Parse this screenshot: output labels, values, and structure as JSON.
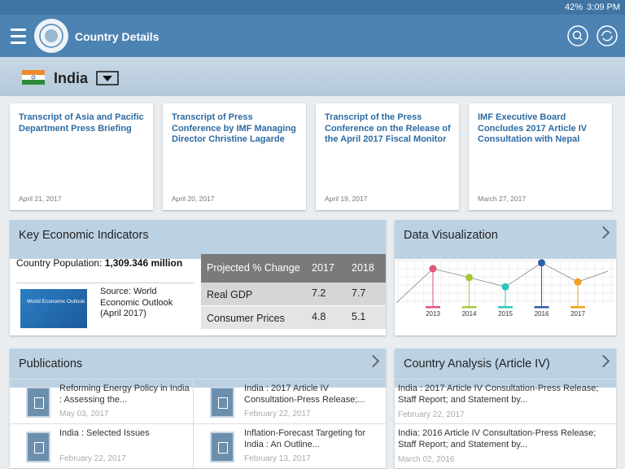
{
  "status_bar": {
    "battery": "42%",
    "time": "3:09 PM"
  },
  "header": {
    "title": "Country Details"
  },
  "country": {
    "name": "India"
  },
  "news": [
    {
      "title": "Transcript of Asia and Pacific Department Press Briefing",
      "date": "April 21, 2017"
    },
    {
      "title": "Transcript of Press Conference by IMF Managing Director Christine Lagarde",
      "date": "April 20, 2017"
    },
    {
      "title": "Transcript of the Press Conference on the Release of the April 2017 Fiscal Monitor",
      "date": "April 19, 2017"
    },
    {
      "title": "IMF Executive Board Concludes 2017 Article IV Consultation with Nepal",
      "date": "March 27, 2017"
    }
  ],
  "key_indicators": {
    "title": "Key Economic Indicators",
    "population_label": "Country Population:",
    "population_value": "1,309.346",
    "population_unit": "million",
    "cover_text": "World Economic Outlook",
    "source": "Source: World Economic Outlook (April 2017)",
    "table": {
      "header": [
        "Projected % Change",
        2017,
        2018
      ],
      "rows": [
        [
          "Real GDP",
          7.2,
          7.7
        ],
        [
          "Consumer Prices",
          4.8,
          5.1
        ]
      ]
    }
  },
  "data_visualization": {
    "title": "Data Visualization",
    "chart": {
      "type": "line",
      "categories": [
        "2013",
        "2014",
        "2015",
        "2016",
        "2017"
      ],
      "values": [
        7,
        5.2,
        3.3,
        8.2,
        4.3
      ],
      "colors": [
        "#e0567a",
        "#a6c83a",
        "#2ec4c0",
        "#2b5fa8",
        "#f0a020"
      ]
    }
  },
  "publications": {
    "title": "Publications",
    "items": [
      {
        "title": "Reforming Energy Policy in India : Assessing the...",
        "date": "May 03, 2017"
      },
      {
        "title": "India : 2017 Article IV Consultation-Press Release;...",
        "date": "February 22, 2017"
      },
      {
        "title": "India : Selected Issues",
        "date": "February 22, 2017"
      },
      {
        "title": "Inflation-Forecast Targeting for India : An Outline...",
        "date": "February 13, 2017"
      }
    ]
  },
  "country_analysis": {
    "title": "Country Analysis (Article IV)",
    "items": [
      {
        "title": "India : 2017 Article IV Consultation-Press Release; Staff Report; and Statement by...",
        "date": "February 22, 2017"
      },
      {
        "title": "India: 2016 Article IV Consultation-Press Release; Staff Report; and Statement by...",
        "date": "March 02, 2016"
      }
    ]
  }
}
